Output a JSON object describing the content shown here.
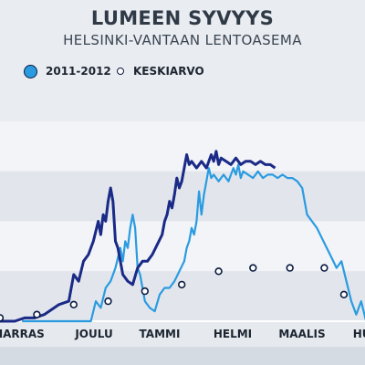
{
  "chart_data": {
    "type": "line",
    "title": "LUMEEN SYVYYS",
    "subtitle": "HELSINKI-VANTAAN LENTOASEMA",
    "xlabel": "",
    "ylabel": "",
    "categories": [
      "MARRAS",
      "JOULU",
      "TAMMI",
      "HELMI",
      "MAALIS",
      "HUHTI"
    ],
    "grid": true,
    "legend_position": "top-left",
    "series": [
      {
        "name": "2011-2012",
        "style": "line",
        "color_dark": "#1a2a86",
        "color_light": "#2a9be0",
        "values": [
          [
            0,
            0
          ],
          [
            6,
            0
          ],
          [
            10,
            1
          ],
          [
            14,
            1
          ],
          [
            18,
            2
          ],
          [
            24,
            5
          ],
          [
            28,
            6
          ],
          [
            30,
            14
          ],
          [
            32,
            12
          ],
          [
            34,
            18
          ],
          [
            36,
            20
          ],
          [
            38,
            24
          ],
          [
            40,
            30
          ],
          [
            41,
            26
          ],
          [
            42,
            32
          ],
          [
            43,
            30
          ],
          [
            44,
            36
          ],
          [
            45,
            40
          ],
          [
            46,
            36
          ],
          [
            47,
            24
          ],
          [
            48,
            22
          ],
          [
            49,
            18
          ],
          [
            50,
            14
          ],
          [
            52,
            12
          ],
          [
            54,
            11
          ],
          [
            56,
            16
          ],
          [
            58,
            18
          ],
          [
            60,
            18
          ],
          [
            62,
            20
          ],
          [
            64,
            23
          ],
          [
            66,
            26
          ],
          [
            67,
            30
          ],
          [
            68,
            32
          ],
          [
            69,
            36
          ],
          [
            70,
            34
          ],
          [
            71,
            38
          ],
          [
            72,
            43
          ],
          [
            73,
            40
          ],
          [
            74,
            42
          ],
          [
            75,
            46
          ],
          [
            76,
            50
          ],
          [
            77,
            47
          ],
          [
            78,
            48
          ],
          [
            80,
            46
          ],
          [
            82,
            48
          ],
          [
            84,
            46
          ],
          [
            86,
            50
          ],
          [
            87,
            48
          ],
          [
            88,
            51
          ],
          [
            89,
            47
          ],
          [
            90,
            49
          ],
          [
            92,
            48
          ],
          [
            94,
            47
          ],
          [
            96,
            49
          ],
          [
            98,
            47
          ],
          [
            100,
            48
          ],
          [
            102,
            48
          ],
          [
            104,
            47
          ],
          [
            106,
            48
          ],
          [
            108,
            47
          ],
          [
            110,
            47
          ],
          [
            112,
            46
          ],
          [
            114,
            44
          ],
          [
            116,
            40
          ],
          [
            118,
            38
          ],
          [
            120,
            36
          ],
          [
            122,
            33
          ],
          [
            124,
            30
          ],
          [
            126,
            27
          ],
          [
            128,
            24
          ],
          [
            130,
            26
          ],
          [
            132,
            20
          ],
          [
            134,
            14
          ],
          [
            136,
            10
          ],
          [
            138,
            14
          ],
          [
            140,
            7
          ],
          [
            142,
            3
          ],
          [
            144,
            1
          ],
          [
            146,
            0
          ]
        ]
      },
      {
        "name": "KESKIARVO",
        "style": "points",
        "values": [
          [
            0,
            1
          ],
          [
            15,
            2
          ],
          [
            30,
            5
          ],
          [
            44,
            6
          ],
          [
            59,
            9
          ],
          [
            74,
            11
          ],
          [
            89,
            15
          ],
          [
            103,
            16
          ],
          [
            118,
            16
          ],
          [
            132,
            16
          ],
          [
            140,
            8
          ],
          [
            155,
            2
          ]
        ]
      }
    ],
    "x_axis": {
      "min": 0,
      "max": 156
    },
    "y_axis": {
      "min": 0,
      "max": 60
    }
  }
}
